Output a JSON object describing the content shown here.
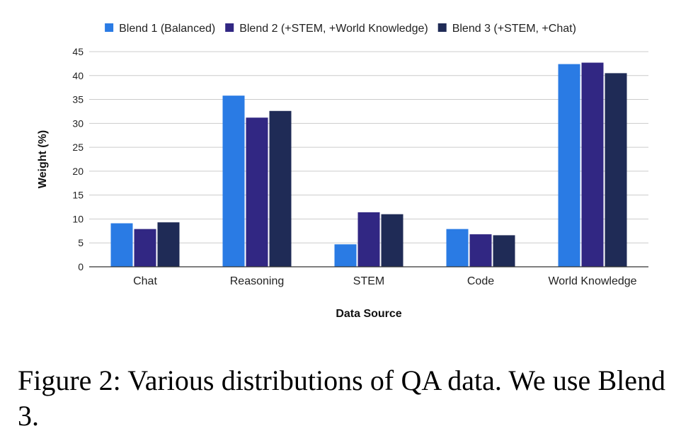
{
  "chart_data": {
    "type": "bar",
    "categories": [
      "Chat",
      "Reasoning",
      "STEM",
      "Code",
      "World Knowledge"
    ],
    "series": [
      {
        "name": "Blend 1 (Balanced)",
        "color": "#2a7be4",
        "values": [
          9.1,
          35.8,
          4.7,
          7.9,
          42.4
        ]
      },
      {
        "name": "Blend 2 (+STEM, +World Knowledge)",
        "color": "#312783",
        "values": [
          7.9,
          31.2,
          11.4,
          6.8,
          42.7
        ]
      },
      {
        "name": "Blend 3 (+STEM, +Chat)",
        "color": "#1f2b56",
        "values": [
          9.3,
          32.6,
          11.0,
          6.6,
          40.5
        ]
      }
    ],
    "xlabel": "Data Source",
    "ylabel": "Weight (%)",
    "ylim": [
      0,
      45
    ],
    "yticks": [
      0,
      5,
      10,
      15,
      20,
      25,
      30,
      35,
      40,
      45
    ],
    "grid": true,
    "legend_position": "top"
  },
  "caption": "Figure 2: Various distributions of QA data. We use Blend 3."
}
